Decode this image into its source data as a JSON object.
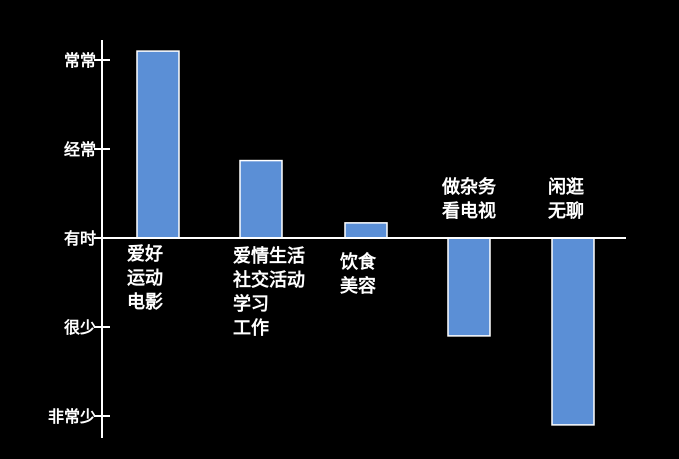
{
  "chart_data": {
    "type": "bar",
    "title": "",
    "xlabel": "",
    "ylabel": "",
    "y_ticks": [
      {
        "value": 2,
        "label": "常常"
      },
      {
        "value": 1,
        "label": "经常"
      },
      {
        "value": 0,
        "label": "有时"
      },
      {
        "value": -1,
        "label": "很少"
      },
      {
        "value": -2,
        "label": "非常少"
      }
    ],
    "ylim": [
      -2,
      2
    ],
    "categories": [
      {
        "lines": [
          "爱好",
          "运动",
          "电影"
        ],
        "value": 2.1
      },
      {
        "lines": [
          "爱情生活",
          "社交活动",
          "学习",
          "工作"
        ],
        "value": 0.87
      },
      {
        "lines": [
          "饮食",
          "美容"
        ],
        "value": 0.17
      },
      {
        "lines": [
          "做杂务",
          "看电视"
        ],
        "value": -1.1
      },
      {
        "lines": [
          "闲逛",
          "无聊"
        ],
        "value": -2.1
      }
    ],
    "grid": false,
    "colors": {
      "bar": "#5b8fd6",
      "bar_edge": "#ffffff",
      "background": "#000000"
    }
  }
}
